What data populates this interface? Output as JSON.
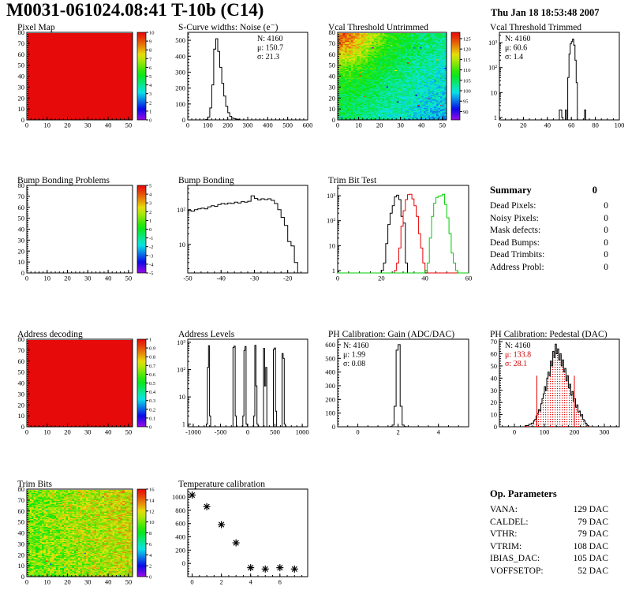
{
  "header": {
    "title": "M0031-061024.08:41 T-10b (C14)",
    "timestamp": "Thu Jan 18 18:53:48 2007"
  },
  "summary": {
    "title": "Summary",
    "total": "0",
    "rows": [
      {
        "label": "Dead Pixels:",
        "value": "0"
      },
      {
        "label": "Noisy Pixels:",
        "value": "0"
      },
      {
        "label": "Mask defects:",
        "value": "0"
      },
      {
        "label": "Dead Bumps:",
        "value": "0"
      },
      {
        "label": "Dead Trimbits:",
        "value": "0"
      },
      {
        "label": "Address Probl:",
        "value": "0"
      }
    ]
  },
  "op_parameters": {
    "title": "Op. Parameters",
    "rows": [
      {
        "label": "VANA:",
        "value": "129 DAC"
      },
      {
        "label": "CALDEL:",
        "value": "79 DAC"
      },
      {
        "label": "VTHR:",
        "value": "79 DAC"
      },
      {
        "label": "VTRIM:",
        "value": "108 DAC"
      },
      {
        "label": "IBIAS_DAC:",
        "value": "105 DAC"
      },
      {
        "label": "VOFFSETOP:",
        "value": "52 DAC"
      }
    ]
  },
  "chart_data": [
    {
      "id": "pixel-map",
      "title": "Pixel Map",
      "type": "heatmap",
      "seed": 1,
      "x_range": [
        0,
        52
      ],
      "xticks": [
        0,
        10,
        20,
        30,
        40,
        50
      ],
      "y_range": [
        0,
        80
      ],
      "yticks": [
        0,
        10,
        20,
        30,
        40,
        50,
        60,
        70,
        80
      ],
      "z_range": [
        0,
        10
      ],
      "cbar_ticks": [
        0,
        1,
        2,
        3,
        4,
        5,
        6,
        7,
        8,
        9,
        10
      ],
      "grid": [
        52,
        80
      ],
      "pattern": {
        "base": 10,
        "gx": 0,
        "gy": 0,
        "noise": 0
      }
    },
    {
      "id": "scurve-noise",
      "title": "S-Curve widths: Noise (e⁻)",
      "type": "hist",
      "x_range": [
        0,
        600
      ],
      "xticks": [
        0,
        100,
        200,
        300,
        400,
        500,
        600
      ],
      "y_range": [
        0,
        550
      ],
      "yticks": [
        0,
        100,
        200,
        300,
        400,
        500
      ],
      "series": [
        {
          "color": "#000000",
          "bw": 10,
          "x0": 90,
          "y": [
            3,
            18,
            75,
            220,
            445,
            510,
            430,
            330,
            230,
            150,
            85,
            45,
            22,
            12,
            8,
            5,
            4
          ]
        }
      ],
      "stats": {
        "pos": "tr",
        "lines": [
          {
            "text": "N: 4160",
            "color": "#000000"
          },
          {
            "text": "μ: 150.7",
            "color": "#000000"
          },
          {
            "text": "σ: 21.3",
            "color": "#000000"
          }
        ]
      }
    },
    {
      "id": "vcal-untrimmed",
      "title": "Vcal Threshold Untrimmed",
      "type": "heatmap",
      "seed": 7,
      "x_range": [
        0,
        52
      ],
      "xticks": [
        0,
        10,
        20,
        30,
        40,
        50
      ],
      "y_range": [
        0,
        80
      ],
      "yticks": [
        0,
        10,
        20,
        30,
        40,
        50,
        60,
        70,
        80
      ],
      "z_range": [
        86,
        128
      ],
      "cbar_ticks": [
        90,
        95,
        100,
        105,
        110,
        115,
        120,
        125
      ],
      "grid": [
        52,
        80
      ],
      "pattern": {
        "base": 105,
        "gx": -8,
        "gy": 6,
        "noise": 3.5,
        "corner": {
          "fx": 0,
          "fy": 0,
          "r": 0.35,
          "amp": 13
        },
        "speckle": 28
      }
    },
    {
      "id": "vcal-trimmed",
      "title": "Vcal Threshold Trimmed",
      "type": "hist",
      "ylog": true,
      "x_range": [
        0,
        100
      ],
      "xticks": [
        0,
        20,
        40,
        60,
        80,
        100
      ],
      "xdiv": 4,
      "y_range": [
        0.8,
        2600
      ],
      "series": [
        {
          "color": "#000000",
          "bw": 1,
          "x": [
            50,
            51,
            52,
            55,
            57,
            58,
            59,
            60,
            61,
            62,
            63,
            64,
            71
          ],
          "y": [
            2,
            2,
            1,
            2,
            40,
            350,
            900,
            1100,
            1400,
            800,
            200,
            25,
            2
          ]
        }
      ],
      "stats": {
        "pos": "tl",
        "lines": [
          {
            "text": "N: 4160",
            "color": "#000000"
          },
          {
            "text": "μ: 60.6",
            "color": "#000000"
          },
          {
            "text": "σ: 1.4",
            "color": "#000000"
          }
        ]
      }
    },
    {
      "id": "bump-problems",
      "title": "Bump Bonding Problems",
      "type": "heatmap",
      "x_range": [
        0,
        52
      ],
      "xticks": [
        0,
        10,
        20,
        30,
        40,
        50
      ],
      "y_range": [
        0,
        80
      ],
      "yticks": [
        0,
        10,
        20,
        30,
        40,
        50,
        60,
        70,
        80
      ],
      "z_range": [
        -5,
        5
      ],
      "cbar_ticks": [
        -5,
        -4,
        -3,
        -2,
        -1,
        0,
        1,
        2,
        3,
        4,
        5
      ],
      "grid": [
        52,
        80
      ],
      "pattern": null
    },
    {
      "id": "bump-bonding",
      "title": "Bump Bonding",
      "type": "hist",
      "ylog": true,
      "x_range": [
        -50,
        -14
      ],
      "xticks": [
        -50,
        -40,
        -30,
        -20
      ],
      "y_range": [
        1.5,
        500
      ],
      "series": [
        {
          "color": "#000000",
          "bw": 1,
          "x0": -50,
          "y": [
            95,
            90,
            100,
            105,
            110,
            105,
            120,
            130,
            125,
            140,
            150,
            145,
            155,
            150,
            165,
            155,
            170,
            165,
            175,
            250,
            210,
            190,
            205,
            195,
            205,
            185,
            150,
            100,
            60,
            35,
            12,
            9,
            3
          ]
        }
      ]
    },
    {
      "id": "trim-bit-test",
      "title": "Trim Bit Test",
      "type": "hist",
      "ylog": true,
      "x_range": [
        0,
        60
      ],
      "xticks": [
        0,
        20,
        40,
        60
      ],
      "xdiv": 4,
      "y_range": [
        0.8,
        2600
      ],
      "series": [
        {
          "color": "#000000",
          "bw": 1,
          "x0": 20,
          "y": [
            1,
            2,
            12,
            70,
            200,
            400,
            900,
            1050,
            700,
            150,
            80,
            2
          ]
        },
        {
          "color": "#e60000",
          "bw": 1,
          "x0": 26,
          "y": [
            1,
            2,
            8,
            60,
            250,
            700,
            1100,
            1150,
            750,
            400,
            150,
            30,
            8,
            2,
            1
          ]
        },
        {
          "color": "#00cc00",
          "bw": 1,
          "x0": 40,
          "y": [
            1,
            2,
            20,
            150,
            500,
            850,
            950,
            1000,
            1150,
            450,
            130,
            30,
            5,
            2,
            1
          ]
        }
      ]
    },
    {
      "id": "address-decoding",
      "title": "Address decoding",
      "type": "heatmap",
      "seed": 3,
      "x_range": [
        0,
        52
      ],
      "xticks": [
        0,
        10,
        20,
        30,
        40,
        50
      ],
      "y_range": [
        0,
        80
      ],
      "yticks": [
        0,
        10,
        20,
        30,
        40,
        50,
        60,
        70,
        80
      ],
      "z_range": [
        0,
        1
      ],
      "cbar_ticks": [
        0,
        0.1,
        0.2,
        0.3,
        0.4,
        0.5,
        0.6,
        0.7,
        0.8,
        0.9,
        1
      ],
      "grid": [
        52,
        80
      ],
      "pattern": {
        "base": 1,
        "gx": 0,
        "gy": 0,
        "noise": 0
      }
    },
    {
      "id": "address-levels",
      "title": "Address Levels",
      "type": "hist",
      "ylog": true,
      "x_range": [
        -1100,
        1100
      ],
      "xticks": [
        -1000,
        -500,
        0,
        500,
        1000
      ],
      "y_range": [
        0.8,
        1300
      ],
      "series": [
        {
          "color": "#000000",
          "bw": 20,
          "x": [
            -760,
            -740,
            -720,
            -700,
            -270,
            -250,
            -230,
            -90,
            -70,
            -50,
            -30,
            110,
            130,
            150,
            170,
            290,
            310,
            330,
            470,
            490,
            510,
            630,
            650,
            670
          ],
          "y": [
            1,
            120,
            750,
            2,
            650,
            730,
            2,
            2,
            500,
            700,
            1,
            2,
            780,
            25,
            1,
            600,
            25,
            120,
            550,
            620,
            3,
            390,
            260,
            1
          ]
        }
      ]
    },
    {
      "id": "ph-gain",
      "title": "PH Calibration: Gain (ADC/DAC)",
      "type": "hist",
      "x_range": [
        -1,
        5.5
      ],
      "xticks": [
        0,
        2,
        4
      ],
      "xdiv": 4,
      "y_range": [
        0,
        640
      ],
      "yticks": [
        0,
        100,
        200,
        300,
        400,
        500,
        600
      ],
      "series": [
        {
          "color": "#000000",
          "bw": 0.1,
          "x0": 1.6,
          "y": [
            1,
            12,
            150,
            560,
            600,
            150,
            12,
            1
          ]
        }
      ],
      "stats": {
        "pos": "tl",
        "lines": [
          {
            "text": "N: 4160",
            "color": "#000000"
          },
          {
            "text": "μ: 1.99",
            "color": "#000000"
          },
          {
            "text": "σ: 0.08",
            "color": "#000000"
          }
        ]
      }
    },
    {
      "id": "ph-pedestal",
      "title": "PH Calibration: Pedestal (DAC)",
      "type": "hist",
      "x_range": [
        -50,
        350
      ],
      "xticks": [
        0,
        100,
        200,
        300
      ],
      "y_range": [
        0,
        72
      ],
      "yticks": [
        0,
        10,
        20,
        30,
        40,
        50,
        60,
        70
      ],
      "series": [
        {
          "color": "#e60000",
          "stroke": "#000000",
          "fill": "dots",
          "bw": 4,
          "x0": 36,
          "y": [
            1,
            1,
            1,
            2,
            2,
            3,
            3,
            5,
            6,
            9,
            11,
            14,
            13,
            19,
            23,
            27,
            33,
            30,
            40,
            45,
            42,
            54,
            50,
            62,
            57,
            68,
            60,
            64,
            55,
            60,
            50,
            55,
            45,
            48,
            38,
            42,
            32,
            35,
            26,
            29,
            21,
            23,
            16,
            18,
            12,
            13,
            9,
            10,
            6,
            5,
            3,
            2,
            1
          ]
        }
      ],
      "vlines": [
        {
          "x": 75,
          "y": 42,
          "color": "#e60000"
        },
        {
          "x": 200,
          "y": 42,
          "color": "#e60000"
        }
      ],
      "stats": {
        "pos": "tl",
        "lines": [
          {
            "text": "N: 4160",
            "color": "#000000"
          },
          {
            "text": "μ: 133.8",
            "color": "#cc0000"
          },
          {
            "text": "σ: 28.1",
            "color": "#cc0000"
          }
        ]
      }
    },
    {
      "id": "trim-bits",
      "title": "Trim Bits",
      "type": "heatmap",
      "seed": 11,
      "x_range": [
        0,
        52
      ],
      "xticks": [
        0,
        10,
        20,
        30,
        40,
        50
      ],
      "y_range": [
        0,
        80
      ],
      "yticks": [
        0,
        10,
        20,
        30,
        40,
        50,
        60,
        70,
        80
      ],
      "z_range": [
        0,
        16
      ],
      "cbar_ticks": [
        0,
        2,
        4,
        6,
        8,
        10,
        12,
        14,
        16
      ],
      "grid": [
        52,
        80
      ],
      "pattern": {
        "base": 9.6,
        "gx": 1.8,
        "gy": 0.5,
        "noise": 2.2,
        "speckle": 18
      }
    },
    {
      "id": "temperature",
      "title": "Temperature calibration",
      "type": "scatter",
      "x_range": [
        -0.3,
        7.9
      ],
      "xticks": [
        0,
        2,
        4,
        6
      ],
      "xdiv": 4,
      "y_range": [
        -200,
        1120
      ],
      "yticks": [
        0,
        200,
        400,
        600,
        800,
        1000
      ],
      "points": [
        [
          0,
          1030
        ],
        [
          1,
          855
        ],
        [
          2,
          585
        ],
        [
          3,
          310
        ],
        [
          4,
          -65
        ],
        [
          5,
          -85
        ],
        [
          6,
          -65
        ],
        [
          7,
          -85
        ]
      ]
    }
  ]
}
